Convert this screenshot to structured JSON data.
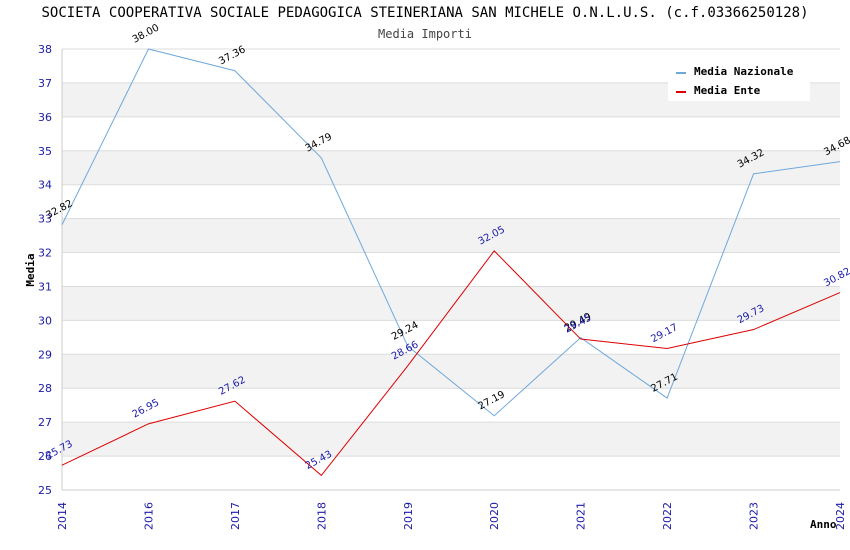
{
  "chart_data": {
    "type": "line",
    "title": "SOCIETA COOPERATIVA SOCIALE PEDAGOGICA STEINERIANA SAN MICHELE O.N.L.U.S. (c.f.03366250128)",
    "subtitle": "Media Importi",
    "xlabel": "Anno",
    "ylabel": "Media",
    "ylim": [
      25,
      38
    ],
    "yticks": [
      "25",
      "26",
      "27",
      "28",
      "29",
      "30",
      "31",
      "32",
      "33",
      "34",
      "35",
      "36",
      "37",
      "38"
    ],
    "categories": [
      "2014",
      "2016",
      "2017",
      "2018",
      "2019",
      "2020",
      "2021",
      "2022",
      "2023",
      "2024"
    ],
    "grid": true,
    "legend_position": "top-right",
    "series": [
      {
        "name": "Media Nazionale",
        "color": "#6fa8dc",
        "label_color": "#000000",
        "values": [
          32.82,
          38.0,
          37.36,
          34.79,
          29.24,
          27.19,
          29.49,
          27.71,
          34.32,
          34.68
        ],
        "labels": [
          "32.82",
          "38.00",
          "37.36",
          "34.79",
          "29.24",
          "27.19",
          "29.49",
          "27.71",
          "34.32",
          "34.68"
        ]
      },
      {
        "name": "Media Ente",
        "color": "#dd0000",
        "label_color": "#1a1aa8",
        "values": [
          25.73,
          26.95,
          27.62,
          25.43,
          28.66,
          32.05,
          29.45,
          29.17,
          29.73,
          30.82
        ],
        "labels": [
          "25.73",
          "26.95",
          "27.62",
          "25.43",
          "28.66",
          "32.05",
          "29.45",
          "29.17",
          "29.73",
          "30.82"
        ]
      }
    ]
  }
}
